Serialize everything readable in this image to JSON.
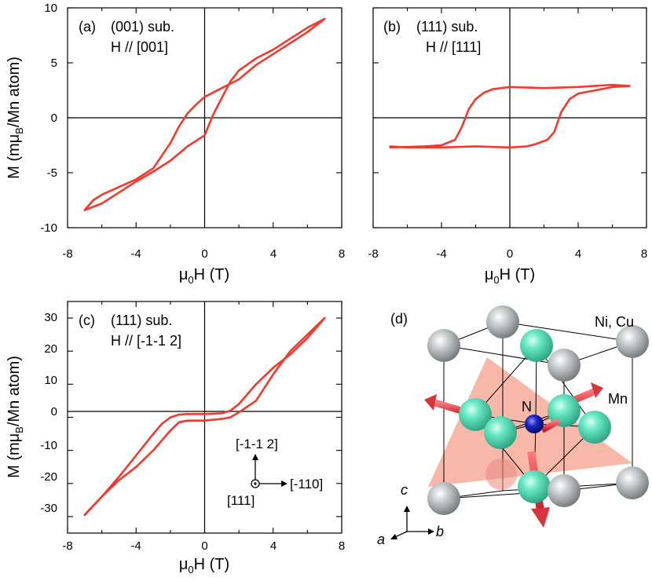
{
  "chart_data": [
    {
      "panel": "(a)",
      "type": "line",
      "annotation": [
        "(a)",
        "(001) sub.",
        "H // [001]"
      ],
      "xlabel": {
        "main": "μ",
        "sub": "0",
        "tail": "H (T)"
      },
      "ylabel": {
        "pre": "M (mμ",
        "sub": "B",
        "post": "/Mn atom)"
      },
      "xlim": [
        -8,
        8
      ],
      "ylim": [
        -10,
        10
      ],
      "xticks": [
        "-8",
        "-4",
        "0",
        "4",
        "8"
      ],
      "yticks": [
        "-10",
        "-5",
        "0",
        "5",
        "10"
      ],
      "color": "#f03a2e",
      "series": [
        {
          "name": "upper branch",
          "x": [
            -7,
            -6.5,
            -6,
            -5,
            -4,
            -3,
            -2,
            -1.5,
            -1,
            -0.5,
            0,
            0.5,
            1,
            2,
            3,
            4,
            5,
            6,
            7
          ],
          "y": [
            -8.4,
            -7.5,
            -7,
            -6.3,
            -5.6,
            -4.6,
            -2.3,
            -0.8,
            0.4,
            1.2,
            1.9,
            2.3,
            2.7,
            3.5,
            4.8,
            5.8,
            6.8,
            7.8,
            9
          ]
        },
        {
          "name": "lower branch",
          "x": [
            7,
            6,
            5,
            4,
            3,
            2,
            1.5,
            1,
            0.5,
            0,
            -0.5,
            -1,
            -2,
            -3,
            -4,
            -5,
            -6,
            -7
          ],
          "y": [
            9,
            8.2,
            7.2,
            6.2,
            5.4,
            4.3,
            3.3,
            1.8,
            0.3,
            -1.6,
            -2.1,
            -2.6,
            -3.9,
            -4.9,
            -5.8,
            -6.8,
            -7.8,
            -8.4
          ]
        }
      ]
    },
    {
      "panel": "(b)",
      "type": "line",
      "annotation": [
        "(b)",
        "(111) sub.",
        "H // [111]"
      ],
      "xlabel": {
        "main": "μ",
        "sub": "0",
        "tail": "H (T)"
      },
      "xlim": [
        -8,
        8
      ],
      "ylim": [
        -10,
        10
      ],
      "xticks": [
        "-8",
        "-4",
        "0",
        "4",
        "8"
      ],
      "color": "#f03a2e",
      "series": [
        {
          "name": "upper branch",
          "x": [
            -7,
            -5,
            -4,
            -3.2,
            -2.8,
            -2.4,
            -2,
            -1.5,
            -1,
            0,
            2,
            4,
            6,
            7
          ],
          "y": [
            -2.7,
            -2.6,
            -2.5,
            -2,
            -0.8,
            0.8,
            1.7,
            2.3,
            2.6,
            2.8,
            2.7,
            2.8,
            3,
            2.9
          ]
        },
        {
          "name": "lower branch",
          "x": [
            7,
            6,
            5,
            4,
            3.5,
            3,
            2.6,
            2.2,
            1.5,
            1,
            0,
            -2,
            -4,
            -6,
            -7
          ],
          "y": [
            2.9,
            2.8,
            2.5,
            2.2,
            1.7,
            0.5,
            -1.3,
            -2,
            -2.4,
            -2.6,
            -2.7,
            -2.6,
            -2.7,
            -2.7,
            -2.6
          ]
        }
      ]
    },
    {
      "panel": "(c)",
      "type": "line",
      "annotation": [
        "(c)",
        "(111) sub.",
        "H // [-1-1 2]"
      ],
      "xlabel": {
        "main": "μ",
        "sub": "0",
        "tail": "H (T)"
      },
      "ylabel": {
        "pre": "M (mμ",
        "sub": "B",
        "post": "/Mn atom)"
      },
      "xlim": [
        -8,
        8
      ],
      "ylim": [
        -35,
        35
      ],
      "xticks": [
        "-8",
        "-4",
        "0",
        "4",
        "8"
      ],
      "yticks": [
        "-30",
        "-20",
        "-10",
        "0",
        "10",
        "20",
        "30"
      ],
      "color": "#f03a2e",
      "series": [
        {
          "name": "upper branch",
          "x": [
            -7,
            -6,
            -5,
            -4,
            -3,
            -2.5,
            -2,
            -1.5,
            -1,
            0,
            1,
            1.5,
            2,
            3,
            4,
            5,
            6,
            7
          ],
          "y": [
            -29.5,
            -24,
            -18,
            -11.5,
            -5,
            -2,
            0,
            0.8,
            1,
            1,
            1.2,
            2,
            4,
            10,
            15,
            19,
            24,
            30
          ]
        },
        {
          "name": "lower branch",
          "x": [
            7,
            6,
            5,
            4,
            3,
            2,
            1.5,
            1,
            0,
            -1,
            -1.5,
            -2,
            -3,
            -4,
            -5,
            -6,
            -7
          ],
          "y": [
            30,
            25,
            20,
            13,
            5,
            1.5,
            0,
            -0.5,
            -1,
            -1,
            -1.5,
            -4,
            -10,
            -15,
            -19,
            -24,
            -29.5
          ]
        }
      ]
    }
  ],
  "direction_inset": {
    "up": "[-1-1 2]",
    "right": "[-110]",
    "out": "[111]"
  },
  "crystal": {
    "panel": "(d)",
    "site_label": "Ni, Cu",
    "center_label": "N",
    "mn_label": "Mn",
    "axis_c": "c",
    "axis_a": "a",
    "axis_b": "b"
  },
  "colors": {
    "curve": "#f03a2e",
    "ni": "#9ea3a5",
    "mn": "#5fe6bf",
    "n": "#0f1aa0",
    "arrow": "#e83b45",
    "plane": "#f4a08e"
  }
}
